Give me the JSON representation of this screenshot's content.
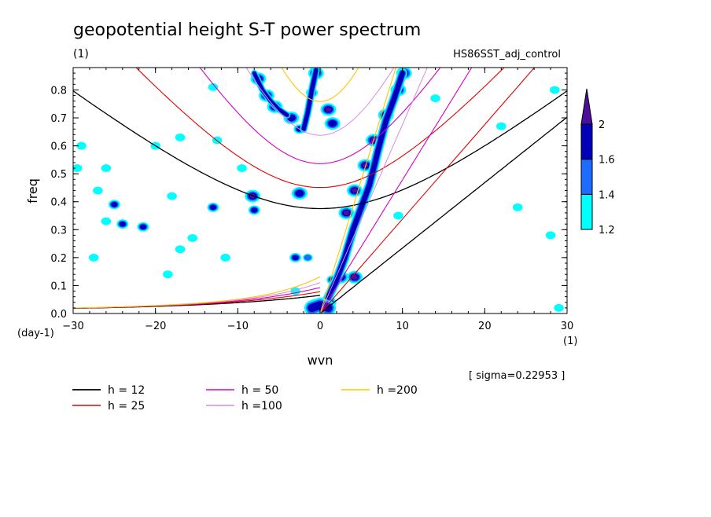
{
  "chart_data": {
    "type": "heatmap",
    "title": "geopotential height S-T power spectrum",
    "subtitle_left": "(1)",
    "subtitle_right": "HS86SST_adj_control",
    "xlabel": "wvn",
    "ylabel": "freq",
    "x_unit": "(1)",
    "y_unit": "(day-1)",
    "xlim": [
      -30,
      30
    ],
    "ylim": [
      0,
      0.88
    ],
    "x_ticks": [
      "−30",
      "−20",
      "−10",
      "0",
      "10",
      "20",
      "30"
    ],
    "x_tick_values": [
      -30,
      -20,
      -10,
      0,
      10,
      20,
      30
    ],
    "y_ticks": [
      "0.0",
      "0.1",
      "0.2",
      "0.3",
      "0.4",
      "0.5",
      "0.6",
      "0.7",
      "0.8"
    ],
    "y_tick_values": [
      0,
      0.1,
      0.2,
      0.3,
      0.4,
      0.5,
      0.6,
      0.7,
      0.8
    ],
    "sigma_label": "[ sigma=0.22953 ]",
    "colorbar": {
      "levels": [
        "1.2",
        "1.4",
        "1.6",
        "2"
      ],
      "colors": [
        "#00ffff",
        "#1e6cff",
        "#0000b8",
        "#4b0f9c"
      ]
    },
    "dispersion_curves": [
      {
        "label": "h = 12",
        "h": 12,
        "color": "#000000",
        "width": 1.3
      },
      {
        "label": "h = 25",
        "h": 25,
        "color": "#e30000",
        "width": 1.1
      },
      {
        "label": "h = 50",
        "h": 50,
        "color": "#d400c4",
        "width": 1.1
      },
      {
        "label": "h =100",
        "h": 100,
        "color": "#d98ae2",
        "width": 1.0
      },
      {
        "label": "h =200",
        "h": 200,
        "color": "#ffc400",
        "width": 1.1
      }
    ],
    "ridges": [
      {
        "level": 1.8,
        "points": [
          [
            0.2,
            0.01
          ],
          [
            2,
            0.12
          ],
          [
            3,
            0.2
          ],
          [
            4,
            0.3
          ],
          [
            5,
            0.38
          ],
          [
            6,
            0.46
          ],
          [
            7,
            0.58
          ],
          [
            8,
            0.69
          ],
          [
            9,
            0.77
          ],
          [
            10,
            0.86
          ]
        ],
        "width": 1.0
      },
      {
        "level": 1.6,
        "points": [
          [
            -2,
            0.66
          ],
          [
            -1.5,
            0.72
          ],
          [
            -1,
            0.8
          ],
          [
            -0.5,
            0.87
          ]
        ],
        "width": 0.8
      },
      {
        "level": 1.6,
        "points": [
          [
            -8,
            0.86
          ],
          [
            -7,
            0.8
          ],
          [
            -6,
            0.76
          ],
          [
            -5,
            0.73
          ],
          [
            -4,
            0.71
          ]
        ],
        "width": 0.7
      },
      {
        "level": 1.6,
        "points": [
          [
            -1,
            0.02
          ],
          [
            0,
            0.03
          ],
          [
            1,
            0.02
          ]
        ],
        "width": 1.6
      }
    ],
    "blobs": [
      {
        "x": -7.5,
        "y": 0.84,
        "level": 2
      },
      {
        "x": -6.5,
        "y": 0.78,
        "level": 2
      },
      {
        "x": -5.5,
        "y": 0.74,
        "level": 1.8
      },
      {
        "x": -3.5,
        "y": 0.7,
        "level": 1.8
      },
      {
        "x": -2.5,
        "y": 0.66,
        "level": 1.6
      },
      {
        "x": -1,
        "y": 0.79,
        "level": 1.6
      },
      {
        "x": -0.5,
        "y": 0.86,
        "level": 2
      },
      {
        "x": 1,
        "y": 0.73,
        "level": 2
      },
      {
        "x": 1.5,
        "y": 0.68,
        "level": 1.8
      },
      {
        "x": -2.5,
        "y": 0.43,
        "level": 1.8
      },
      {
        "x": -8.2,
        "y": 0.42,
        "level": 2
      },
      {
        "x": -8,
        "y": 0.37,
        "level": 1.6
      },
      {
        "x": -13,
        "y": 0.38,
        "level": 1.6
      },
      {
        "x": -18,
        "y": 0.42,
        "level": 1.2
      },
      {
        "x": -25,
        "y": 0.39,
        "level": 1.6
      },
      {
        "x": -27,
        "y": 0.44,
        "level": 1.2
      },
      {
        "x": -24,
        "y": 0.32,
        "level": 1.6
      },
      {
        "x": -26,
        "y": 0.33,
        "level": 1.2
      },
      {
        "x": -21.5,
        "y": 0.31,
        "level": 1.6
      },
      {
        "x": -17,
        "y": 0.23,
        "level": 1.2
      },
      {
        "x": -15.5,
        "y": 0.27,
        "level": 1.2
      },
      {
        "x": -11.5,
        "y": 0.2,
        "level": 1.2
      },
      {
        "x": -3,
        "y": 0.2,
        "level": 1.6
      },
      {
        "x": -1.5,
        "y": 0.2,
        "level": 1.4
      },
      {
        "x": -20,
        "y": 0.6,
        "level": 1.2
      },
      {
        "x": -17,
        "y": 0.63,
        "level": 1.2
      },
      {
        "x": -12.5,
        "y": 0.62,
        "level": 1.2
      },
      {
        "x": -9.5,
        "y": 0.52,
        "level": 1.2
      },
      {
        "x": -13,
        "y": 0.81,
        "level": 1.2
      },
      {
        "x": -26,
        "y": 0.52,
        "level": 1.2
      },
      {
        "x": -29.5,
        "y": 0.52,
        "level": 1.2
      },
      {
        "x": -29,
        "y": 0.6,
        "level": 1.2
      },
      {
        "x": -27.5,
        "y": 0.2,
        "level": 1.2
      },
      {
        "x": -18.5,
        "y": 0.14,
        "level": 1.2
      },
      {
        "x": -3,
        "y": 0.08,
        "level": 1.2
      },
      {
        "x": 1.5,
        "y": 0.12,
        "level": 1.6
      },
      {
        "x": 2.5,
        "y": 0.13,
        "level": 2
      },
      {
        "x": 4.2,
        "y": 0.13,
        "level": 2
      },
      {
        "x": 3.2,
        "y": 0.36,
        "level": 2
      },
      {
        "x": 4.2,
        "y": 0.44,
        "level": 2
      },
      {
        "x": 5.5,
        "y": 0.53,
        "level": 2
      },
      {
        "x": 6.5,
        "y": 0.62,
        "level": 2
      },
      {
        "x": 9.5,
        "y": 0.8,
        "level": 2
      },
      {
        "x": 10.2,
        "y": 0.86,
        "level": 2
      },
      {
        "x": 8,
        "y": 0.71,
        "level": 1.8
      },
      {
        "x": 1,
        "y": 0.04,
        "level": 2
      },
      {
        "x": -0.5,
        "y": 0.03,
        "level": 2
      },
      {
        "x": 28.5,
        "y": 0.8,
        "level": 1.2
      },
      {
        "x": 22,
        "y": 0.67,
        "level": 1.2
      },
      {
        "x": 28,
        "y": 0.28,
        "level": 1.2
      },
      {
        "x": 24,
        "y": 0.38,
        "level": 1.2
      },
      {
        "x": 14,
        "y": 0.77,
        "level": 1.2
      },
      {
        "x": 9.5,
        "y": 0.35,
        "level": 1.2
      },
      {
        "x": 29,
        "y": 0.02,
        "level": 1.2
      }
    ]
  }
}
